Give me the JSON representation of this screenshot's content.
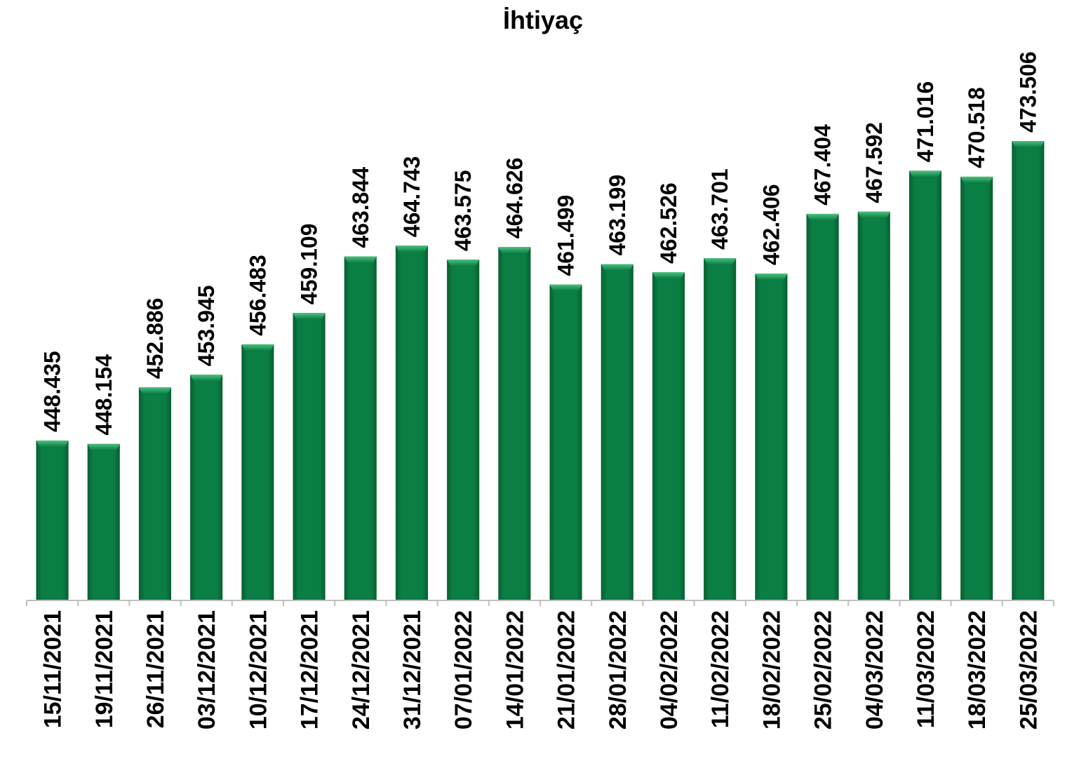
{
  "chart_data": {
    "type": "bar",
    "title": "İhtiyaç",
    "xlabel": "",
    "ylabel": "",
    "ylim": [
      430000,
      480000
    ],
    "grid": false,
    "legend": "none",
    "categories": [
      "15/11/2021",
      "19/11/2021",
      "26/11/2021",
      "03/12/2021",
      "10/12/2021",
      "17/12/2021",
      "24/12/2021",
      "31/12/2021",
      "07/01/2022",
      "14/01/2022",
      "21/01/2022",
      "28/01/2022",
      "04/02/2022",
      "11/02/2022",
      "18/02/2022",
      "25/02/2022",
      "04/03/2022",
      "11/03/2022",
      "18/03/2022",
      "25/03/2022"
    ],
    "values": [
      448435,
      448154,
      452886,
      453945,
      456483,
      459109,
      463844,
      464743,
      463575,
      464626,
      461499,
      463199,
      462526,
      463701,
      462406,
      467404,
      467592,
      471016,
      470518,
      473506
    ],
    "value_labels": [
      "448.435",
      "448.154",
      "452.886",
      "453.945",
      "456.483",
      "459.109",
      "463.844",
      "464.743",
      "463.575",
      "464.626",
      "461.499",
      "463.199",
      "462.526",
      "463.701",
      "462.406",
      "467.404",
      "467.592",
      "471.016",
      "470.518",
      "473.506"
    ],
    "colors": {
      "bar": "#0b7e45",
      "bar_dark": "#06602f",
      "bar_top": "#4cc07e",
      "axis": "#bfbfbf"
    }
  }
}
